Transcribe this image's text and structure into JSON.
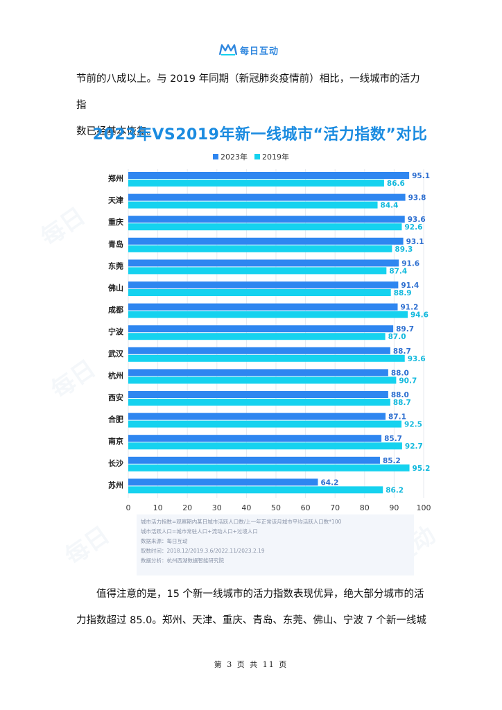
{
  "header": {
    "brand": "每日互动"
  },
  "paragraph_top": {
    "line1": "节前的八成以上。与 2019 年同期（新冠肺炎疫情前）相比，一线城市的活力指",
    "line2": "数已经基本恢复。"
  },
  "colors": {
    "series_2023": "#2e86f0",
    "series_2019": "#15d2ef",
    "title": "#1a8be0"
  },
  "chart_data": {
    "type": "bar",
    "orientation": "horizontal",
    "title": "2023年VS2019年新一线城市“活力指数”对比",
    "categories": [
      "郑州",
      "天津",
      "重庆",
      "青岛",
      "东莞",
      "佛山",
      "成都",
      "宁波",
      "武汉",
      "杭州",
      "西安",
      "合肥",
      "南京",
      "长沙",
      "苏州"
    ],
    "series": [
      {
        "name": "2023年",
        "values": [
          95.1,
          93.8,
          93.6,
          93.1,
          91.6,
          91.4,
          91.2,
          89.7,
          88.7,
          88.0,
          88.0,
          87.1,
          85.7,
          85.2,
          64.2
        ]
      },
      {
        "name": "2019年",
        "values": [
          86.6,
          84.4,
          92.6,
          89.3,
          87.4,
          88.9,
          94.6,
          87.0,
          93.6,
          90.7,
          88.7,
          92.5,
          92.7,
          95.2,
          86.2
        ]
      }
    ],
    "xlim": [
      0,
      100
    ],
    "xticks": [
      0,
      10,
      20,
      30,
      40,
      50,
      60,
      70,
      80,
      90,
      100
    ],
    "grid": true,
    "legend": "top-center"
  },
  "chart_notes": [
    "城市活力指数=观察期内某日城市活跃人口数/上一年正常该月城市平均活跃人口数*100",
    "城市活跃人口=城市常驻人口+流动人口+过境人口",
    "数据来源：每日互动",
    "取数时间：2018.12/2019.3.6/2022.11/2023.2.19",
    "数据分析：杭州西湖数据智能研究院"
  ],
  "paragraph_bottom": {
    "line1": "值得注意的是，15 个新一线城市的活力指数表现优异，绝大部分城市的活",
    "line2": "力指数超过 85.0。郑州、天津、重庆、青岛、东莞、佛山、宁波 7 个新一线城"
  },
  "footer": {
    "page_label": "第 3 页 共 11 页"
  }
}
